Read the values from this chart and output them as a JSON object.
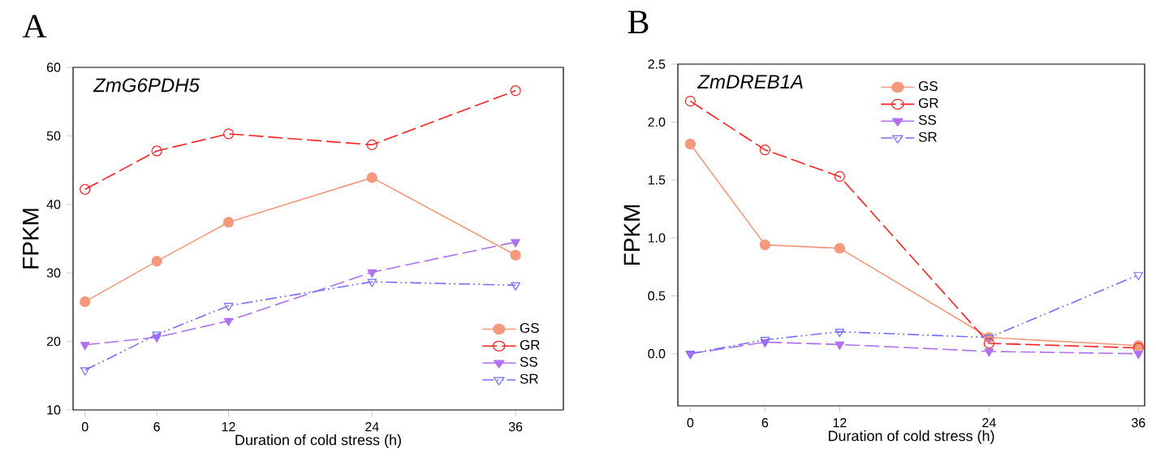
{
  "chart_data": [
    {
      "type": "line",
      "title": "A",
      "subtitle": "ZmG6PDH5",
      "xlabel": "Duration of cold stress (h)",
      "ylabel": "FPKM",
      "x": [
        0,
        6,
        12,
        24,
        36
      ],
      "xlim": [
        -1,
        40
      ],
      "xticks": [
        0,
        6,
        12,
        24,
        36
      ],
      "ylim": [
        10,
        60
      ],
      "yticks": [
        10,
        20,
        30,
        40,
        50,
        60
      ],
      "legend": "bottom right",
      "grid": false,
      "series": [
        {
          "name": "GS",
          "color": "#f4997b",
          "values": [
            25.8,
            31.7,
            37.4,
            43.9,
            32.6
          ],
          "marker": "circle",
          "line_style": "solid"
        },
        {
          "name": "GR",
          "color": "#ff2020",
          "values": [
            42.2,
            47.8,
            50.3,
            48.7,
            56.6
          ],
          "marker": "open circle",
          "line_style": "dashed"
        },
        {
          "name": "SS",
          "color": "#b070f0",
          "values": [
            19.5,
            20.6,
            23.0,
            30.1,
            34.5
          ],
          "marker": "triangle down",
          "line_style": "dashed"
        },
        {
          "name": "SR",
          "color": "#7070ff",
          "values": [
            15.8,
            21.0,
            25.2,
            28.7,
            28.2
          ],
          "marker": "triangle",
          "line_style": "dashdotdotted"
        }
      ]
    },
    {
      "type": "line",
      "title": "B",
      "subtitle": "ZmDREB1A",
      "xlabel": "Duration of cold stress (h)",
      "ylabel": "FPKM",
      "x": [
        0,
        6,
        12,
        24,
        36
      ],
      "xlim": [
        -1,
        36.5
      ],
      "xticks": [
        0,
        6,
        12,
        24,
        36
      ],
      "ylim": [
        -0.45,
        2.5
      ],
      "yticks": [
        {
          "value": 0,
          "label": "0.0"
        },
        0.5,
        {
          "value": 1,
          "label": "1.0"
        },
        1.5,
        {
          "value": 2,
          "label": "2.0"
        },
        2.5
      ],
      "legend": "top",
      "grid": false,
      "series": [
        {
          "name": "GS",
          "color": "#f4997b",
          "values": [
            1.81,
            0.94,
            0.91,
            0.14,
            0.07
          ],
          "marker": "circle",
          "line_style": "solid"
        },
        {
          "name": "GR",
          "color": "#ff2020",
          "values": [
            2.18,
            1.76,
            1.53,
            0.09,
            0.05
          ],
          "marker": "open circle",
          "line_style": "dashed"
        },
        {
          "name": "SS",
          "color": "#b070f0",
          "values": [
            0.0,
            0.1,
            0.08,
            0.02,
            0.0
          ],
          "marker": "triangle down",
          "line_style": "dashed"
        },
        {
          "name": "SR",
          "color": "#7070ff",
          "values": [
            0.0,
            0.12,
            0.19,
            0.14,
            0.68
          ],
          "marker": "triangle",
          "line_style": "dashdotdotted"
        }
      ]
    }
  ]
}
